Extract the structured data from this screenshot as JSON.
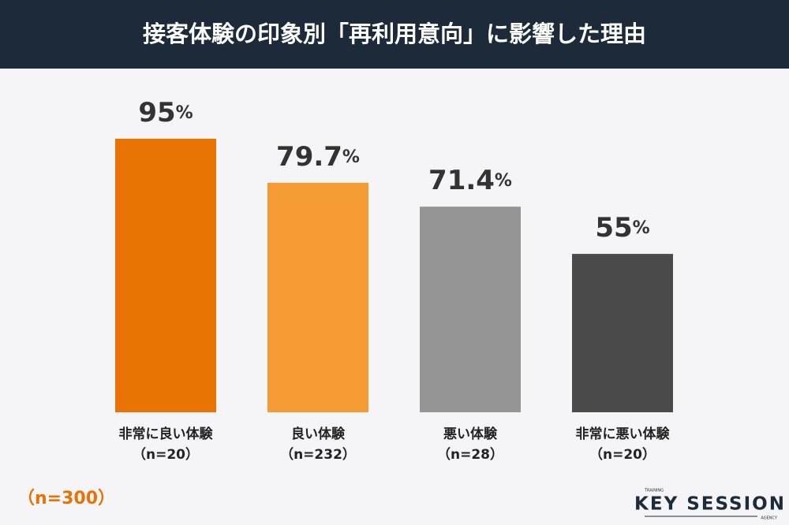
{
  "chart_data": {
    "type": "bar",
    "title": "接客体験の印象別「再利用意向」に影響した理由",
    "categories": [
      "非常に良い体験",
      "良い体験",
      "悪い体験",
      "非常に悪い体験"
    ],
    "sample_sizes": [
      "（n=20）",
      "（n=232）",
      "（n=28）",
      "（n=20）"
    ],
    "values": [
      95,
      79.7,
      71.4,
      55
    ],
    "value_labels": [
      "95%",
      "79.7%",
      "71.4%",
      "55%"
    ],
    "colors": [
      "#e87305",
      "#f59b34",
      "#959595",
      "#4a4a4a"
    ],
    "total_note": "（n=300）",
    "logo": {
      "top": "TRAINING",
      "name": "KEY SESSION",
      "bottom": "AGENCY"
    }
  }
}
